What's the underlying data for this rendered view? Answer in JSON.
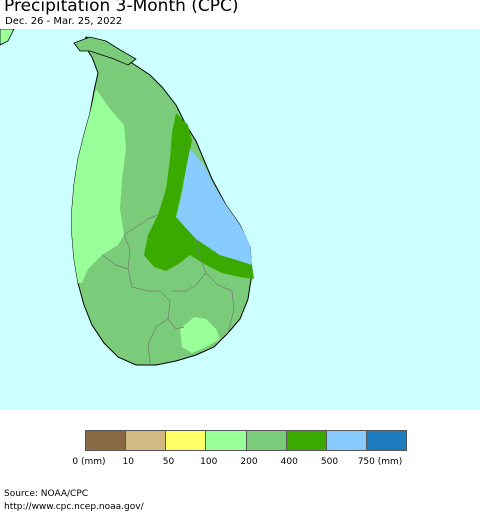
{
  "header": {
    "title": "Precipitation 3-Month (CPC)",
    "subtitle": "Dec. 26 - Mar. 25, 2022"
  },
  "map": {
    "ocean_color": "#ccffff",
    "land_outside_color": "#99ff99",
    "regions": [
      {
        "name": "northern-peninsula",
        "category": "200-400",
        "color": "#7acc7a"
      },
      {
        "name": "west-coast",
        "category": "100-200",
        "color": "#99ff99"
      },
      {
        "name": "central-highlands",
        "category": "200-400",
        "color": "#7acc7a"
      },
      {
        "name": "north-central-band",
        "category": "400-500",
        "color": "#3aaa00"
      },
      {
        "name": "east-coast",
        "category": "500-750",
        "color": "#88ccff"
      },
      {
        "name": "south-coast",
        "category": "100-200",
        "color": "#99ff99"
      }
    ]
  },
  "legend": {
    "colors": [
      "#8a6a44",
      "#d2bb82",
      "#ffff66",
      "#99ff99",
      "#7acc7a",
      "#3aaa00",
      "#88ccff",
      "#1e7bbd"
    ],
    "labels": [
      "0 (mm)",
      "10",
      "50",
      "100",
      "200",
      "400",
      "500",
      "750 (mm)"
    ]
  },
  "footer": {
    "source": "Source: NOAA/CPC",
    "url": "http://www.cpc.ncep.noaa.gov/"
  }
}
